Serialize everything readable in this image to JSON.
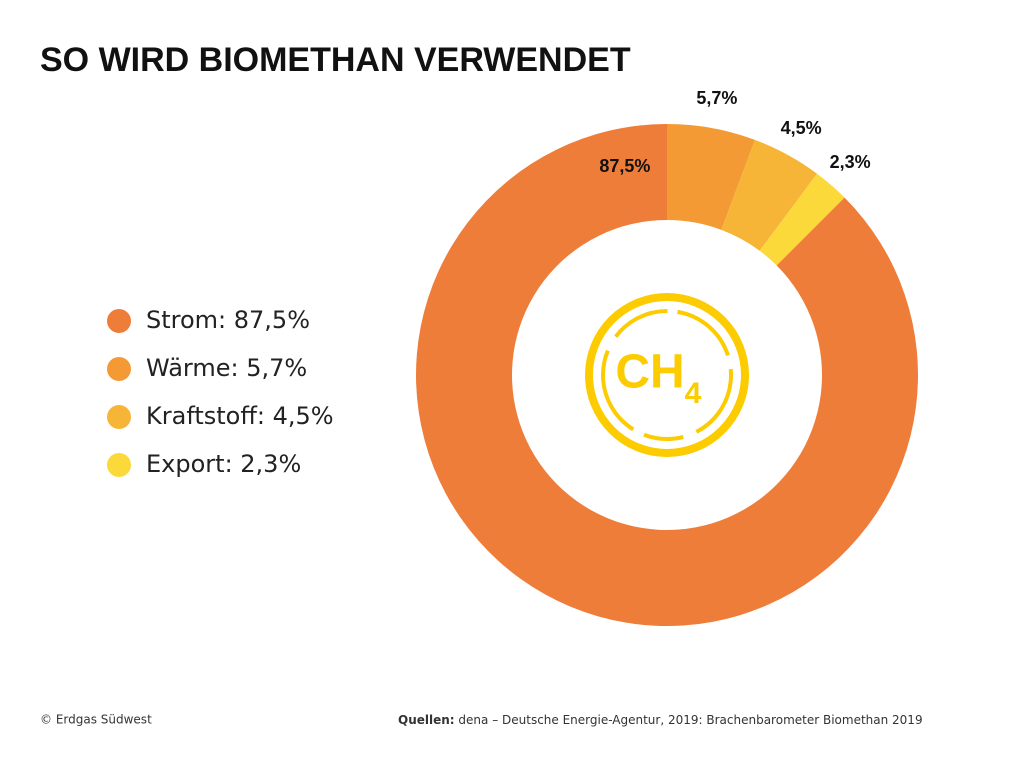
{
  "chart_data": {
    "type": "donut",
    "title": "SO WIRD BIOMETHAN VERWENDET",
    "categories": [
      "Strom: 87,5%",
      "Wärme: 5,7%",
      "Kraftstoff: 4,5%",
      "Export: 2,3%"
    ],
    "values": [
      87.5,
      5.7,
      4.5,
      2.3
    ],
    "value_labels": [
      "87,5%",
      "5,7%",
      "4,5%",
      "2,3%"
    ],
    "colors": [
      "#ef7d3a",
      "#f39a35",
      "#f7b538",
      "#fbd93b"
    ],
    "center_label": "CH",
    "center_subscript": "4",
    "copyright": "© Erdgas Südwest",
    "source_label": "Quellen:",
    "source": "dena – Deutsche Energie-Agentur, 2019: Brachenbarometer Biomethan 2019"
  }
}
